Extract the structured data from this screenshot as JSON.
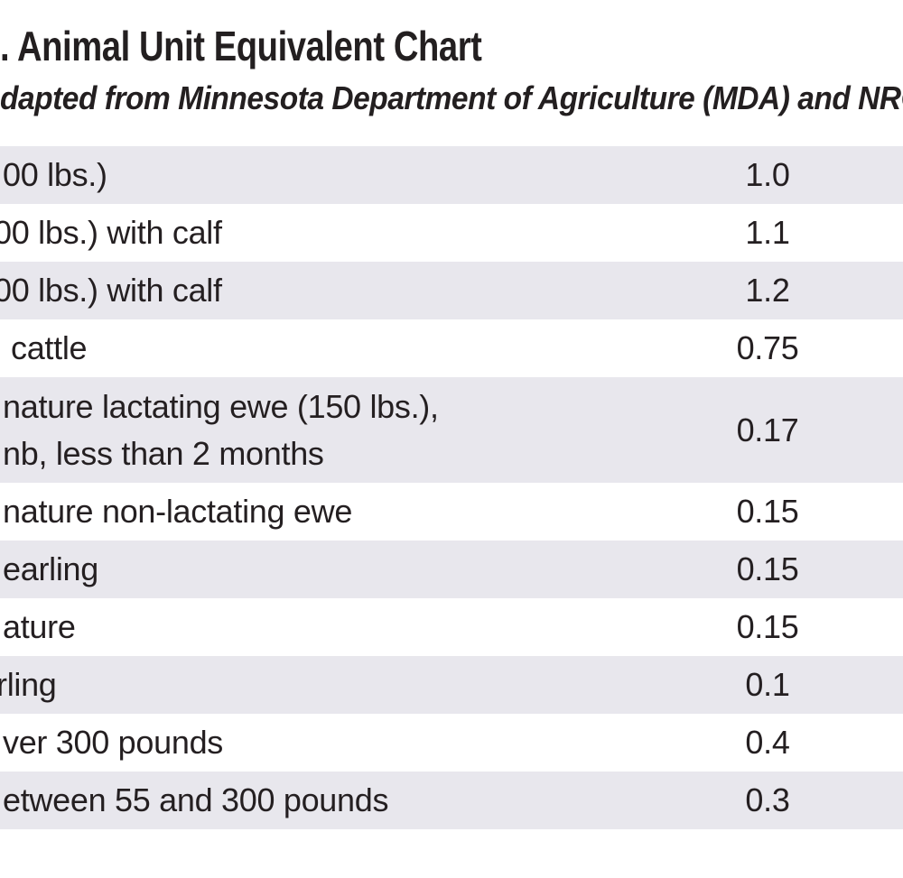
{
  "header": {
    "title_fragment": ". Animal Unit Equivalent Chart",
    "subtitle_fragment": "dapted from Minnesota Department of Agriculture (MDA) and NRC"
  },
  "colors": {
    "row_shade": "#e8e7ed",
    "text": "#231f20",
    "background": "#ffffff"
  },
  "table": {
    "rows": [
      {
        "label": "00 lbs.)",
        "value": "1.0"
      },
      {
        "label": "00 lbs.) with calf",
        "value": "1.1"
      },
      {
        "label": "00 lbs.) with calf",
        "value": "1.2"
      },
      {
        "label": "cattle",
        "value": "0.75"
      },
      {
        "label": "nature lactating ewe (150 lbs.),",
        "label_line2": "nb, less than 2 months",
        "value": "0.17"
      },
      {
        "label": "nature non-lactating ewe",
        "value": "0.15"
      },
      {
        "label": "earling",
        "value": "0.15"
      },
      {
        "label": "ature",
        "value": "0.15"
      },
      {
        "label": "rling",
        "value": "0.1"
      },
      {
        "label": "ver 300 pounds",
        "value": "0.4"
      },
      {
        "label": "etween 55 and 300 pounds",
        "value": "0.3"
      }
    ]
  }
}
